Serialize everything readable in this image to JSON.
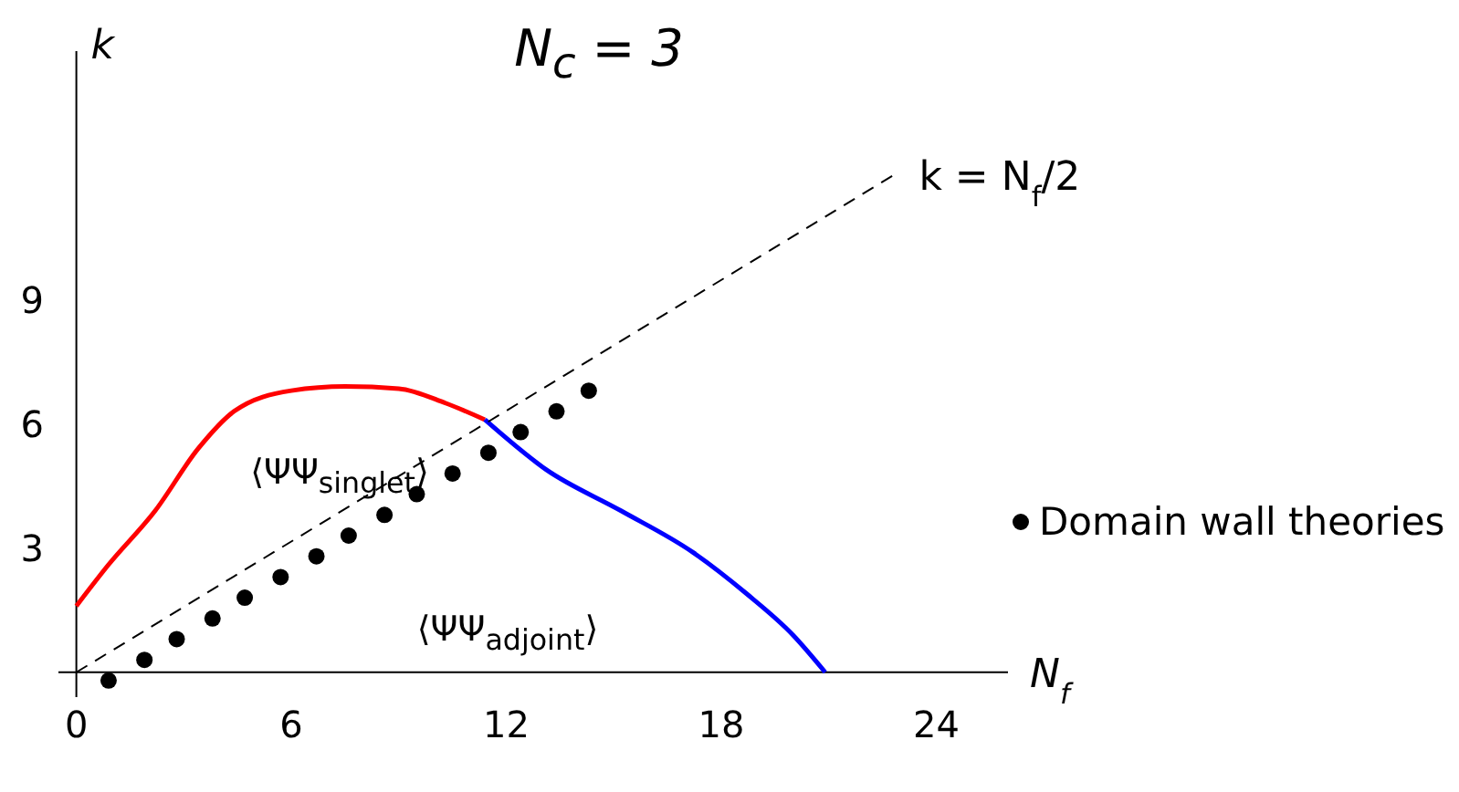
{
  "chart_data": {
    "type": "line",
    "title": "N$_{c}$ = 3",
    "xlabel": "N$_{f}$",
    "ylabel": "k",
    "xlim": [
      -0.5,
      26
    ],
    "ylim": [
      -0.6,
      15
    ],
    "xticks": [
      0,
      6,
      12,
      18,
      24
    ],
    "yticks": [
      3,
      6,
      9
    ],
    "legend": "right",
    "series": [
      {
        "color": "#ff0000",
        "line_style": "solid",
        "marker": "none",
        "x": [
          0,
          0.9,
          2.2,
          3.4,
          4.4,
          6,
          7.5,
          9,
          10.3,
          11.4
        ],
        "values": [
          1.6,
          2.6,
          3.9,
          5.4,
          6.3,
          6.8,
          6.9,
          6.85,
          6.5,
          6.1
        ]
      },
      {
        "color": "#0000ff",
        "line_style": "solid",
        "marker": "none",
        "x": [
          11.4,
          13.1,
          15.2,
          17.2,
          18.7,
          20,
          20.9
        ],
        "values": [
          6.1,
          4.9,
          3.9,
          2.9,
          1.9,
          0.9,
          0
        ]
      },
      {
        "name": "k = N$_{f}$/2",
        "color": "#000000",
        "line_style": "dashed",
        "marker": "none",
        "x": [
          0,
          22.8
        ],
        "values": [
          0,
          12
        ]
      },
      {
        "type": "scatter",
        "name": "Domain wall theories",
        "color": "#000000",
        "marker": "circle",
        "x": [
          0.9,
          1.9,
          2.8,
          3.8,
          4.7,
          5.7,
          6.7,
          7.6,
          8.6,
          9.5,
          10.5,
          11.5,
          12.4,
          13.4,
          14.3
        ],
        "values": [
          -0.2,
          0.3,
          0.8,
          1.3,
          1.8,
          2.3,
          2.8,
          3.3,
          3.8,
          4.3,
          4.8,
          5.3,
          5.8,
          6.3,
          6.8
        ]
      }
    ],
    "annotations": [
      "⟨ΨΨ$_{singlet}$⟩",
      "⟨ΨΨ$_{adjoint}$⟩"
    ]
  }
}
